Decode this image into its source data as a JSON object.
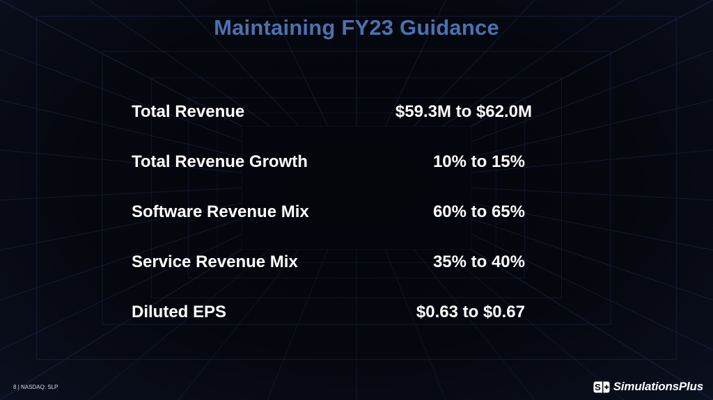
{
  "slide": {
    "title": "Maintaining FY23 Guidance",
    "rows": [
      {
        "label": "Total Revenue",
        "value": "$59.3M to $62.0M"
      },
      {
        "label": "Total Revenue Growth",
        "value": "10% to 15%"
      },
      {
        "label": "Software Revenue Mix",
        "value": "60% to 65%"
      },
      {
        "label": "Service Revenue Mix",
        "value": "35% to 40%"
      },
      {
        "label": "Diluted EPS",
        "value": "$0.63 to $0.67"
      }
    ],
    "footer": {
      "page_number": "8",
      "separator": "|",
      "ticker": "NASDAQ: SLP"
    },
    "logo": {
      "mark_text": "S+",
      "brand": "SimulationsPlus"
    }
  }
}
